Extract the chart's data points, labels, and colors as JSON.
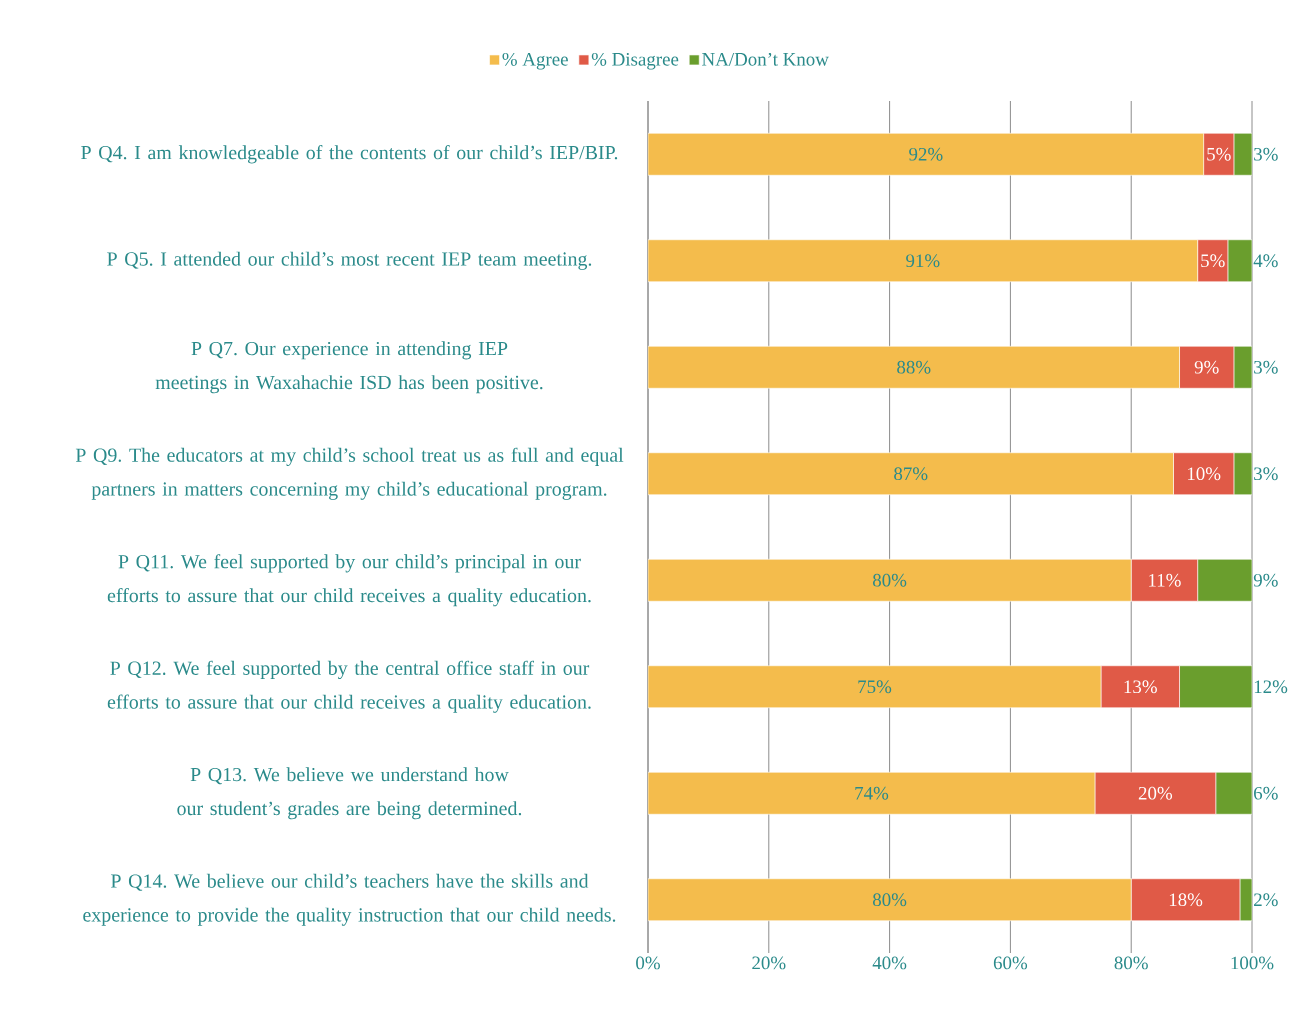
{
  "chart_data": {
    "type": "bar",
    "orientation": "horizontal",
    "stacked": true,
    "grid": "x",
    "legend": "top",
    "categories": [
      "P Q4. I am knowledgeable of the contents of our child’s IEP/BIP.",
      "P Q5. I attended our child’s most recent IEP team meeting.",
      "P Q7. Our experience in attending IEP meetings in Waxahachie ISD has been positive.",
      "P Q9. The educators at my child’s school treat us as full and equal partners in matters concerning my child’s educational program.",
      "P Q11. We feel supported by our child’s principal in our efforts to assure that our child receives a quality education.",
      "P Q12. We feel supported by the central office staff in our efforts to assure that our child receives a quality education.",
      "P Q13. We believe we understand how our student’s grades are being determined.",
      "P Q14. We believe our child’s teachers have the skills and experience to provide the quality instruction that our child needs."
    ],
    "series": [
      {
        "name": "% Agree",
        "color": "#f4bc4c",
        "values": [
          92,
          91,
          88,
          87,
          80,
          75,
          74,
          80
        ],
        "value_labels": [
          "92%",
          "91%",
          "88%",
          "87%",
          "80%",
          "75%",
          "74%",
          "80%"
        ]
      },
      {
        "name": "% Disagree",
        "color": "#e05a47",
        "values": [
          5,
          5,
          9,
          10,
          11,
          13,
          20,
          18
        ],
        "value_labels": [
          "5%",
          "5%",
          "9%",
          "10%",
          "11%",
          "13%",
          "20%",
          "18%"
        ]
      },
      {
        "name": "NA/Don’t Know",
        "color": "#6a9e2d",
        "values": [
          3,
          4,
          3,
          3,
          9,
          12,
          6,
          2
        ],
        "value_labels": [
          "3%",
          "4%",
          "3%",
          "3%",
          "9%",
          "12%",
          "6%",
          "2%"
        ]
      }
    ],
    "xlim": [
      0,
      100
    ],
    "xticks": [
      {
        "value": 0,
        "label": "0%"
      },
      {
        "value": 20,
        "label": "20%"
      },
      {
        "value": 40,
        "label": "40%"
      },
      {
        "value": 60,
        "label": "60%"
      },
      {
        "value": 80,
        "label": "80%"
      },
      {
        "value": 100,
        "label": "100%"
      }
    ]
  }
}
